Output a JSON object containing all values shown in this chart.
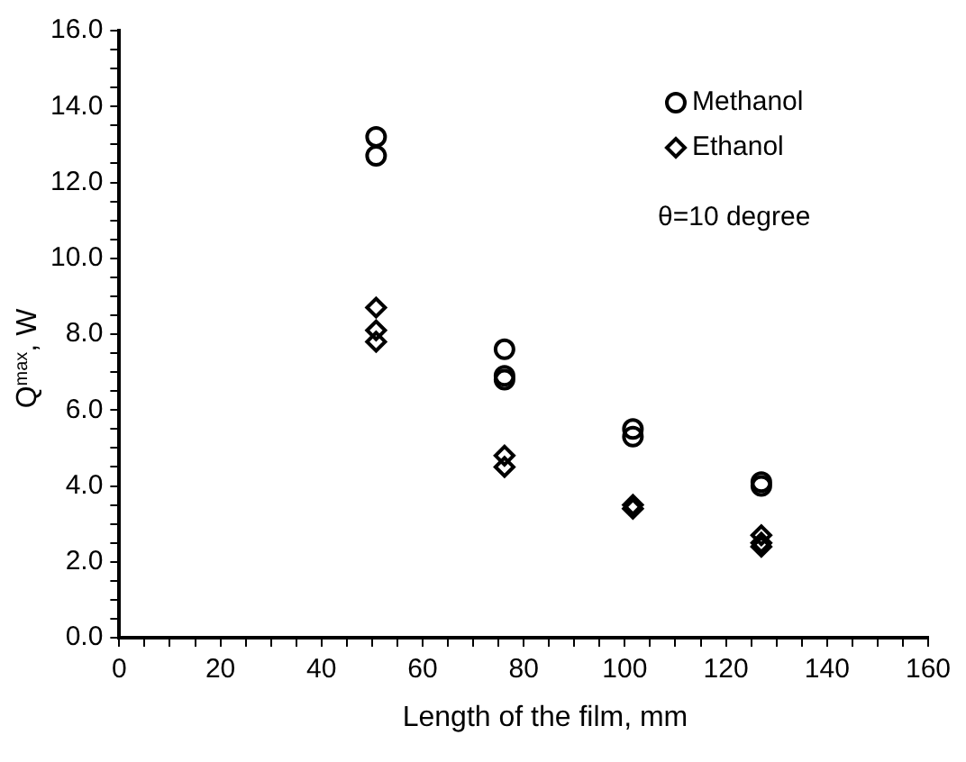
{
  "chart_data": {
    "type": "scatter",
    "xlabel": "Length of the film, mm",
    "ylabel": "Q$_{max}$, W",
    "annotations": [
      "θ=10 degree"
    ],
    "legend": "top right",
    "xlim": [
      0,
      160
    ],
    "ylim": [
      0,
      16
    ],
    "xticks": [
      0,
      20,
      40,
      60,
      80,
      100,
      120,
      140,
      160
    ],
    "yticks": [
      {
        "value": 0,
        "label": "0.0"
      },
      {
        "value": 2,
        "label": "2.0"
      },
      {
        "value": 4,
        "label": "4.0"
      },
      {
        "value": 6,
        "label": "6.0"
      },
      {
        "value": 8,
        "label": "8.0"
      },
      {
        "value": 10,
        "label": "10.0"
      },
      {
        "value": 12,
        "label": "12.0"
      },
      {
        "value": 14,
        "label": "14.0"
      },
      {
        "value": 16,
        "label": "16.0"
      }
    ],
    "series": [
      {
        "name": "Methanol",
        "color": "#000000",
        "marker": "circle",
        "x": [
          50.8,
          50.8,
          76.2,
          76.2,
          76.2,
          101.6,
          101.6,
          127,
          127
        ],
        "values": [
          13.2,
          12.7,
          7.6,
          6.9,
          6.8,
          5.5,
          5.3,
          4.1,
          4.0
        ]
      },
      {
        "name": "Ethanol",
        "color": "#000000",
        "marker": "diamond",
        "x": [
          50.8,
          50.8,
          50.8,
          76.2,
          76.2,
          101.6,
          101.6,
          127,
          127,
          127
        ],
        "values": [
          8.7,
          8.1,
          7.8,
          4.8,
          4.5,
          3.5,
          3.4,
          2.7,
          2.5,
          2.4
        ]
      }
    ]
  }
}
